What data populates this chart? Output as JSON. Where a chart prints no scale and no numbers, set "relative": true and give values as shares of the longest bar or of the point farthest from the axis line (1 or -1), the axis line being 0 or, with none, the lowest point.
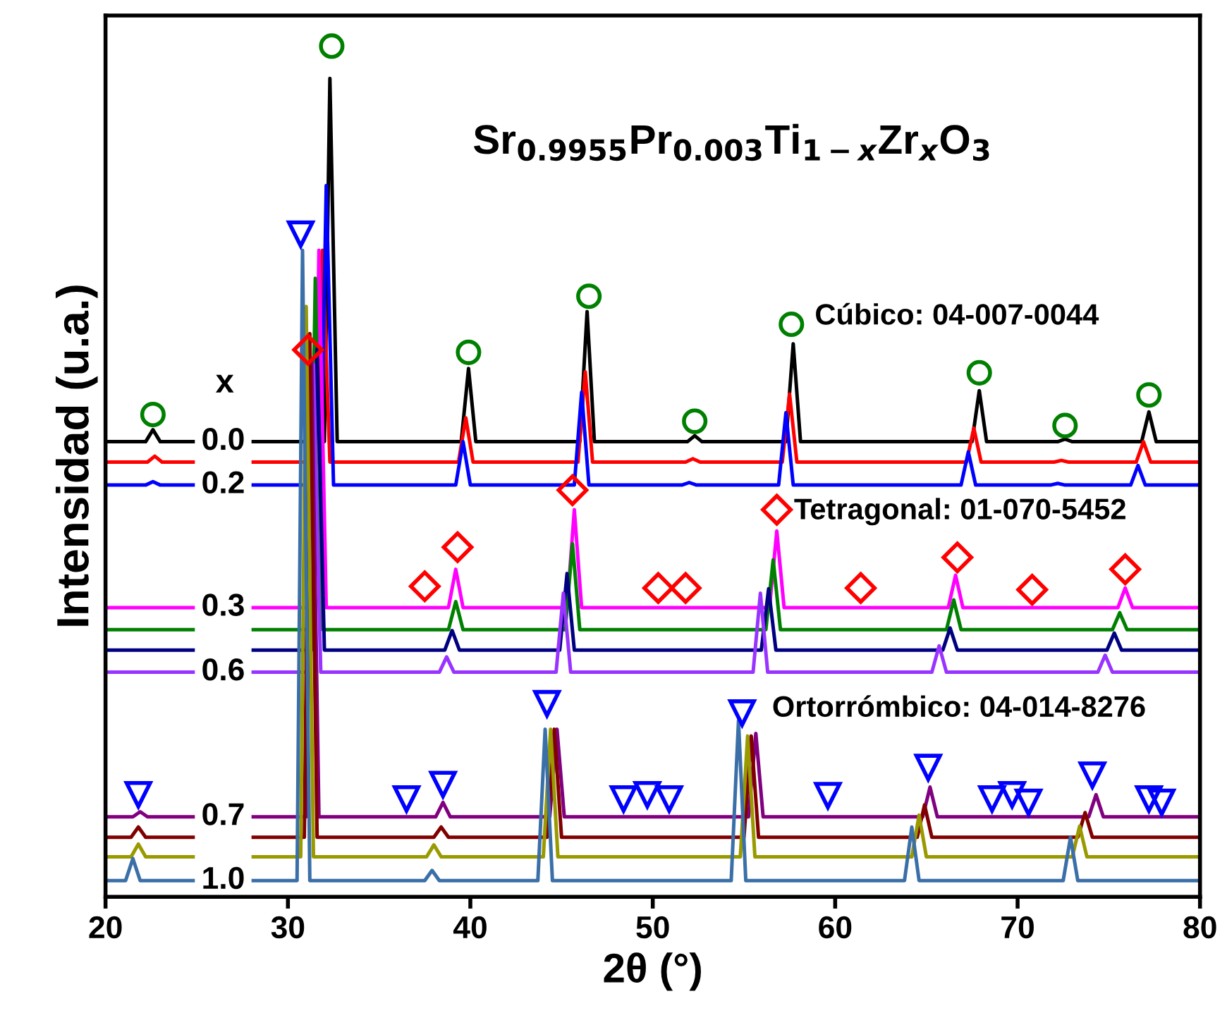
{
  "chart_data": {
    "type": "line",
    "relative": true,
    "title": "Sr$_{0.9955}$Pr$_{0.003}$Ti$_{1−x}$Zr$_{x}$O$_{3}$",
    "xlabel": "2θ (°)",
    "ylabel": "Intensidad (u.a.)",
    "xlim": [
      20,
      80
    ],
    "xticks": [
      20,
      30,
      40,
      50,
      60,
      70,
      80
    ],
    "tick_labels": "x",
    "grid": false,
    "legend": false,
    "marker": "none",
    "line_style": "solid",
    "annotations": [
      "x",
      "Cúbico: 04-007-0044",
      "Tetragonal: 01-070-5452",
      "Ortorrómbico: 04-014-8276"
    ],
    "series": [
      {
        "name": "0.0",
        "color": "#000000",
        "x": [
          20,
          22.2,
          22.6,
          23.0,
          24.8,
          26.45,
          28.1,
          32.0,
          32.3,
          32.7,
          39.5,
          39.9,
          40.3,
          46.0,
          46.4,
          46.8,
          51.9,
          52.3,
          52.7,
          57.3,
          57.7,
          58.1,
          67.5,
          67.9,
          68.3,
          72.2,
          72.6,
          73.0,
          76.8,
          77.2,
          77.6,
          80
        ],
        "values": [
          0.535,
          0.535,
          0.549,
          0.535,
          0.535,
          null,
          0.535,
          0.535,
          0.962,
          0.535,
          0.535,
          0.621,
          0.535,
          0.535,
          0.688,
          0.535,
          0.535,
          0.542,
          0.535,
          0.535,
          0.65,
          0.535,
          0.535,
          0.595,
          0.535,
          0.535,
          0.538,
          0.535,
          0.535,
          0.57,
          0.535,
          0.535
        ]
      },
      {
        "color": "#ff0000",
        "x": [
          20,
          22.3,
          22.7,
          23.1,
          24.8,
          26.45,
          28.1,
          31.6,
          31.9,
          32.3,
          39.35,
          39.75,
          40.15,
          45.9,
          46.3,
          46.7,
          51.8,
          52.2,
          52.6,
          57.1,
          57.5,
          57.9,
          67.2,
          67.6,
          68.0,
          72.0,
          72.4,
          72.8,
          76.5,
          76.9,
          77.3,
          80
        ],
        "values": [
          0.511,
          0.511,
          0.518,
          0.511,
          0.511,
          null,
          0.511,
          0.511,
          0.76,
          0.511,
          0.511,
          0.563,
          0.511,
          0.511,
          0.617,
          0.511,
          0.511,
          0.515,
          0.511,
          0.511,
          0.591,
          0.511,
          0.511,
          0.551,
          0.511,
          0.511,
          0.513,
          0.511,
          0.511,
          0.535,
          0.511,
          0.511
        ]
      },
      {
        "name": "0.2",
        "color": "#0000ff",
        "x": [
          20,
          22.2,
          22.6,
          23.0,
          24.8,
          26.45,
          28.1,
          31.8,
          32.1,
          32.5,
          39.2,
          39.6,
          40.0,
          45.7,
          46.1,
          46.5,
          51.6,
          52.0,
          52.4,
          56.9,
          57.3,
          57.7,
          66.9,
          67.3,
          67.7,
          71.8,
          72.2,
          72.6,
          76.2,
          76.6,
          77.0,
          80
        ],
        "values": [
          0.484,
          0.484,
          0.488,
          0.484,
          0.484,
          null,
          0.484,
          0.484,
          0.836,
          0.484,
          0.484,
          0.535,
          0.484,
          0.484,
          0.593,
          0.484,
          0.484,
          0.487,
          0.484,
          0.484,
          0.569,
          0.484,
          0.484,
          0.523,
          0.484,
          0.484,
          0.486,
          0.484,
          0.484,
          0.507,
          0.484,
          0.484
        ]
      },
      {
        "name": "0.3",
        "color": "#ff00ff",
        "x": [
          20,
          24.8,
          26.45,
          28.1,
          31.4,
          31.7,
          32.1,
          38.8,
          39.2,
          39.6,
          45.3,
          45.7,
          46.1,
          56.4,
          56.8,
          57.2,
          66.2,
          66.6,
          67.0,
          75.5,
          75.9,
          76.3,
          80
        ],
        "values": [
          0.34,
          0.34,
          null,
          0.34,
          0.34,
          0.76,
          0.34,
          0.34,
          0.385,
          0.34,
          0.34,
          0.455,
          0.34,
          0.34,
          0.43,
          0.34,
          0.34,
          0.378,
          0.34,
          0.34,
          0.363,
          0.34,
          0.34
        ]
      },
      {
        "color": "#008000",
        "x": [
          20,
          24.8,
          26.45,
          28.1,
          31.2,
          31.5,
          31.9,
          38.8,
          39.2,
          39.6,
          45.2,
          45.6,
          46.0,
          56.2,
          56.6,
          57.0,
          66.1,
          66.5,
          66.9,
          75.2,
          75.6,
          76.0,
          80
        ],
        "values": [
          0.314,
          0.314,
          null,
          0.314,
          0.314,
          0.727,
          0.314,
          0.314,
          0.347,
          0.314,
          0.314,
          0.415,
          0.314,
          0.314,
          0.396,
          0.314,
          0.314,
          0.349,
          0.314,
          0.314,
          0.334,
          0.314,
          0.314
        ]
      },
      {
        "color": "#000080",
        "x": [
          20,
          24.8,
          26.45,
          28.1,
          31.3,
          31.6,
          32.0,
          38.6,
          39.0,
          39.4,
          44.9,
          45.3,
          45.7,
          55.95,
          56.35,
          56.75,
          65.9,
          66.3,
          66.7,
          74.9,
          75.3,
          75.7,
          80
        ],
        "values": [
          0.29,
          0.29,
          null,
          0.29,
          0.29,
          0.644,
          0.29,
          0.29,
          0.313,
          0.29,
          0.29,
          0.38,
          0.29,
          0.29,
          0.362,
          0.29,
          0.29,
          0.316,
          0.29,
          0.29,
          0.31,
          0.29,
          0.29
        ]
      },
      {
        "name": "0.6",
        "color": "#9933ff",
        "x": [
          20,
          24.8,
          26.45,
          28.1,
          31.1,
          31.4,
          31.8,
          38.3,
          38.7,
          39.1,
          44.7,
          45.1,
          45.5,
          55.5,
          55.9,
          56.3,
          65.3,
          65.7,
          66.1,
          74.4,
          74.8,
          75.2,
          80
        ],
        "values": [
          0.264,
          0.264,
          null,
          0.264,
          0.264,
          0.626,
          0.264,
          0.264,
          0.282,
          0.264,
          0.264,
          0.357,
          0.264,
          0.264,
          0.357,
          0.264,
          0.264,
          0.295,
          0.264,
          0.264,
          0.284,
          0.264,
          0.264
        ]
      },
      {
        "name": "0.7",
        "color": "#800080",
        "x": [
          20,
          21.5,
          21.9,
          22.3,
          24.8,
          26.45,
          28.1,
          31.0,
          31.3,
          31.7,
          38.1,
          38.5,
          38.9,
          44.35,
          44.75,
          45.15,
          55.25,
          55.65,
          56.05,
          64.8,
          65.2,
          65.6,
          73.9,
          74.3,
          74.7,
          80
        ],
        "values": [
          0.094,
          0.094,
          0.1,
          0.094,
          0.094,
          null,
          0.094,
          0.094,
          0.629,
          0.094,
          0.094,
          0.111,
          0.094,
          0.094,
          0.197,
          0.094,
          0.094,
          0.192,
          0.094,
          0.094,
          0.129,
          0.094,
          0.094,
          0.12,
          0.094,
          0.094
        ]
      },
      {
        "color": "#800000",
        "x": [
          20,
          21.4,
          21.8,
          22.2,
          24.8,
          26.45,
          28.1,
          30.9,
          31.2,
          31.6,
          38.0,
          38.4,
          38.8,
          44.2,
          44.6,
          45.0,
          55.0,
          55.4,
          55.8,
          64.5,
          64.9,
          65.3,
          73.3,
          73.7,
          74.1,
          80
        ],
        "values": [
          0.07,
          0.07,
          0.082,
          0.07,
          0.07,
          null,
          0.07,
          0.07,
          0.662,
          0.07,
          0.07,
          0.082,
          0.07,
          0.07,
          0.197,
          0.07,
          0.07,
          0.189,
          0.07,
          0.07,
          0.108,
          0.07,
          0.07,
          0.099,
          0.07,
          0.07
        ]
      },
      {
        "color": "#999900",
        "x": [
          20,
          21.4,
          21.8,
          22.2,
          24.8,
          26.45,
          28.1,
          30.7,
          31.0,
          31.4,
          37.6,
          38.0,
          38.4,
          44.0,
          44.4,
          44.8,
          54.8,
          55.2,
          55.6,
          64.2,
          64.6,
          65.0,
          73.0,
          73.4,
          73.8,
          80
        ],
        "values": [
          0.047,
          0.047,
          0.062,
          0.047,
          0.047,
          null,
          0.047,
          0.047,
          0.694,
          0.047,
          0.047,
          0.061,
          0.047,
          0.047,
          0.197,
          0.047,
          0.047,
          0.189,
          0.047,
          0.047,
          0.096,
          0.047,
          0.047,
          0.083,
          0.047,
          0.047
        ]
      },
      {
        "name": "1.0",
        "color": "#3a6fa8",
        "x": [
          20,
          21.1,
          21.5,
          21.9,
          24.8,
          26.45,
          28.1,
          30.5,
          30.8,
          31.2,
          37.5,
          37.9,
          38.3,
          43.7,
          44.1,
          44.5,
          54.3,
          54.7,
          55.1,
          63.8,
          64.2,
          64.6,
          72.5,
          72.9,
          73.3,
          80
        ],
        "values": [
          0.019,
          0.019,
          0.045,
          0.019,
          0.019,
          null,
          0.019,
          0.019,
          0.76,
          0.019,
          0.019,
          0.031,
          0.019,
          0.019,
          0.197,
          0.019,
          0.019,
          0.207,
          0.019,
          0.019,
          0.082,
          0.019,
          0.019,
          0.07,
          0.019,
          0.019
        ]
      },
      {
        "type": "scatter",
        "marker": "circle",
        "color": "#008000",
        "x": [
          22.6,
          32.4,
          39.9,
          46.5,
          52.3,
          57.6,
          67.9,
          72.6,
          77.2
        ],
        "values": [
          0.567,
          1.0,
          0.64,
          0.706,
          0.559,
          0.673,
          0.616,
          0.554,
          0.59
        ]
      },
      {
        "type": "scatter",
        "marker": "diamond",
        "color": "#ff0000",
        "x": [
          31.1,
          37.5,
          39.3,
          45.6,
          50.3,
          51.8,
          56.8,
          61.4,
          66.7,
          70.8,
          75.9
        ],
        "values": [
          0.643,
          0.365,
          0.411,
          0.478,
          0.363,
          0.363,
          0.455,
          0.363,
          0.399,
          0.361,
          0.385
        ]
      },
      {
        "type": "scatter",
        "marker": "triangle",
        "color": "#0000ff",
        "x": [
          30.7,
          21.8,
          36.5,
          38.5,
          44.2,
          48.4,
          49.7,
          50.9,
          54.9,
          59.6,
          65.1,
          68.6,
          69.7,
          70.6,
          74.1,
          77.2,
          77.9
        ],
        "values": [
          0.779,
          0.12,
          0.115,
          0.132,
          0.227,
          0.115,
          0.12,
          0.115,
          0.216,
          0.119,
          0.152,
          0.115,
          0.12,
          0.111,
          0.143,
          0.115,
          0.111
        ]
      }
    ]
  }
}
